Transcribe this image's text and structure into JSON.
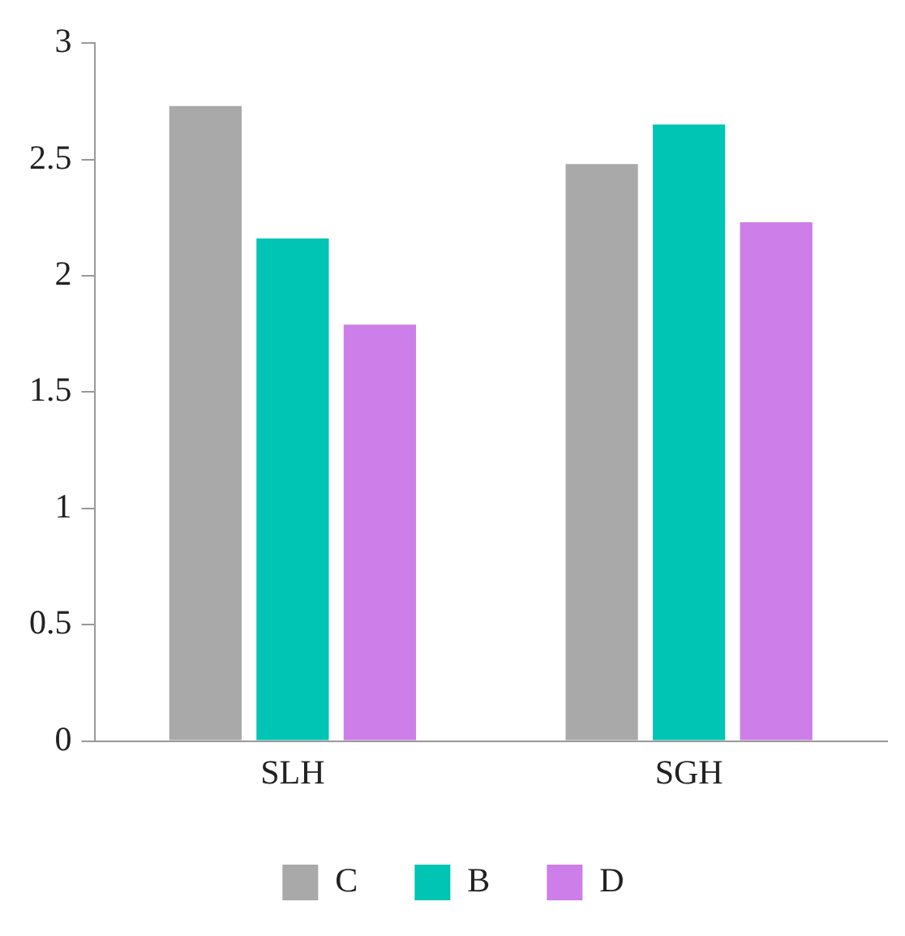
{
  "chart_data": {
    "type": "bar",
    "categories": [
      "SLH",
      "SGH"
    ],
    "series": [
      {
        "name": "C",
        "color": "#a9a9a9",
        "values": [
          2.73,
          2.48
        ]
      },
      {
        "name": "B",
        "color": "#00c4b4",
        "values": [
          2.16,
          2.65
        ]
      },
      {
        "name": "D",
        "color": "#cd7ee8",
        "values": [
          1.79,
          2.23
        ]
      }
    ],
    "ylim": [
      0,
      3
    ],
    "yticks": [
      0,
      0.5,
      1,
      1.5,
      2,
      2.5,
      3
    ],
    "grid": false,
    "legend": "bottom"
  }
}
